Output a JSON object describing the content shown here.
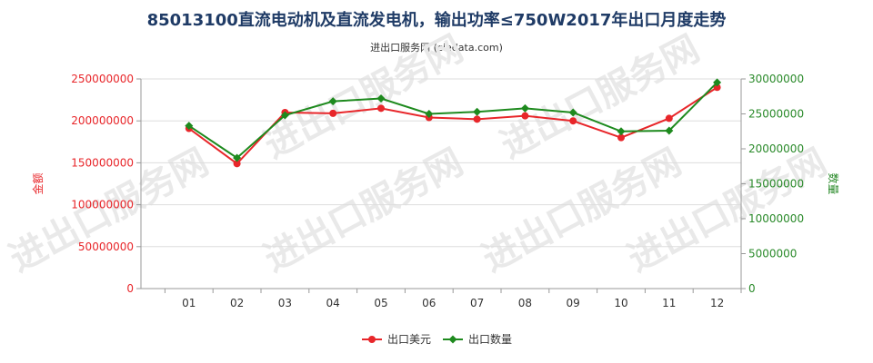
{
  "colors": {
    "amount": "#e8262a",
    "quantity": "#1e8a1e",
    "title": "#1f3b66",
    "grid": "#dddddd"
  },
  "watermark": "进出口服务网",
  "chart_data": {
    "type": "line",
    "title": "85013100直流电动机及直流发电机，输出功率≤750W2017年出口月度走势",
    "subtitle": "进出口服务网 (ciedata.com)",
    "categories": [
      "01",
      "02",
      "03",
      "04",
      "05",
      "06",
      "07",
      "08",
      "09",
      "10",
      "11",
      "12"
    ],
    "series": [
      {
        "name": "出口美元",
        "axis": "left",
        "color": "#e8262a",
        "values": [
          191000000,
          149000000,
          210000000,
          209000000,
          215000000,
          204000000,
          202000000,
          206000000,
          200000000,
          180000000,
          203000000,
          240000000
        ]
      },
      {
        "name": "出口数量",
        "axis": "right",
        "color": "#1e8a1e",
        "values": [
          23300000,
          18700000,
          24800000,
          26800000,
          27200000,
          25000000,
          25300000,
          25800000,
          25200000,
          22500000,
          22600000,
          29500000
        ]
      }
    ],
    "y_left": {
      "label": "金额",
      "range": [
        0,
        250000000
      ],
      "ticks": [
        "0",
        "50000000",
        "100000000",
        "150000000",
        "200000000",
        "250000000"
      ]
    },
    "y_right": {
      "label": "数量",
      "range": [
        0,
        30000000
      ],
      "ticks": [
        "0",
        "5000000",
        "10000000",
        "15000000",
        "20000000",
        "25000000",
        "30000000"
      ]
    },
    "grid": "horizontal",
    "legend": "bottom-center"
  }
}
